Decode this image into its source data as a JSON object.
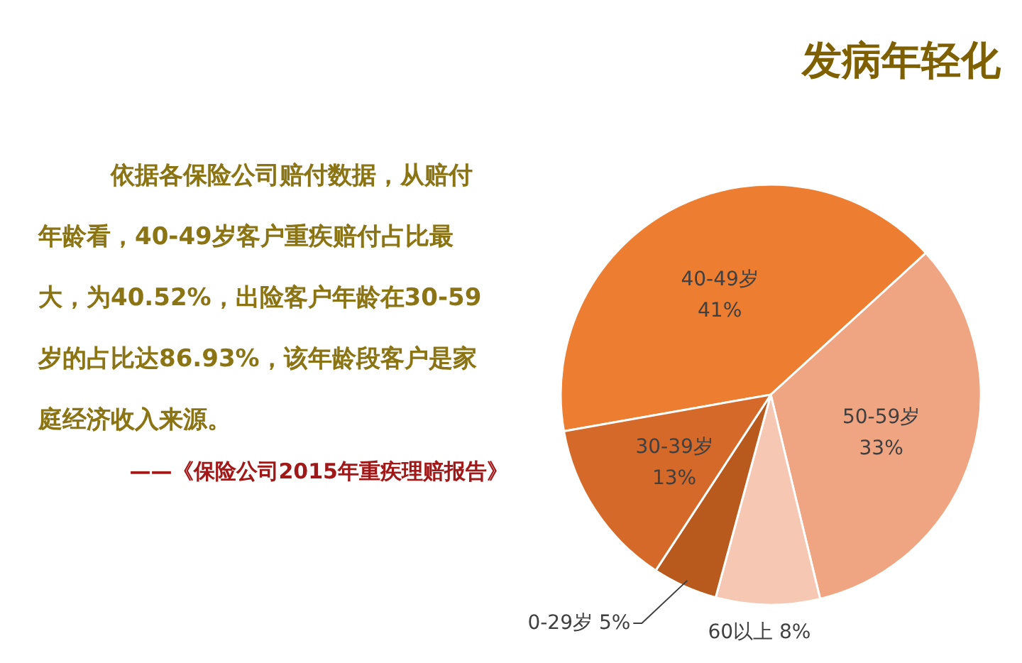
{
  "chart_data": {
    "type": "pie",
    "title": "发病年轻化",
    "categories": [
      "40-49岁",
      "50-59岁",
      "60以上",
      "0-29岁",
      "30-39岁"
    ],
    "values": [
      41,
      33,
      8,
      5,
      13
    ],
    "value_labels": [
      "41%",
      "33%",
      "8%",
      "5%",
      "13%"
    ],
    "colors": [
      "#ed7d31",
      "#f0a582",
      "#f6c8b3",
      "#b85a1e",
      "#d5692a"
    ],
    "annotations": [
      "依据各保险公司赔付数据，从赔付",
      "年龄看，40-49岁客户重疾赔付占比最",
      "大，为40.52%，出险客户年龄在30-59",
      "岁的占比达86.93%，该年龄段客户是家",
      "庭经济收入来源。",
      "——《保险公司2015年重疾理赔报告》"
    ]
  }
}
